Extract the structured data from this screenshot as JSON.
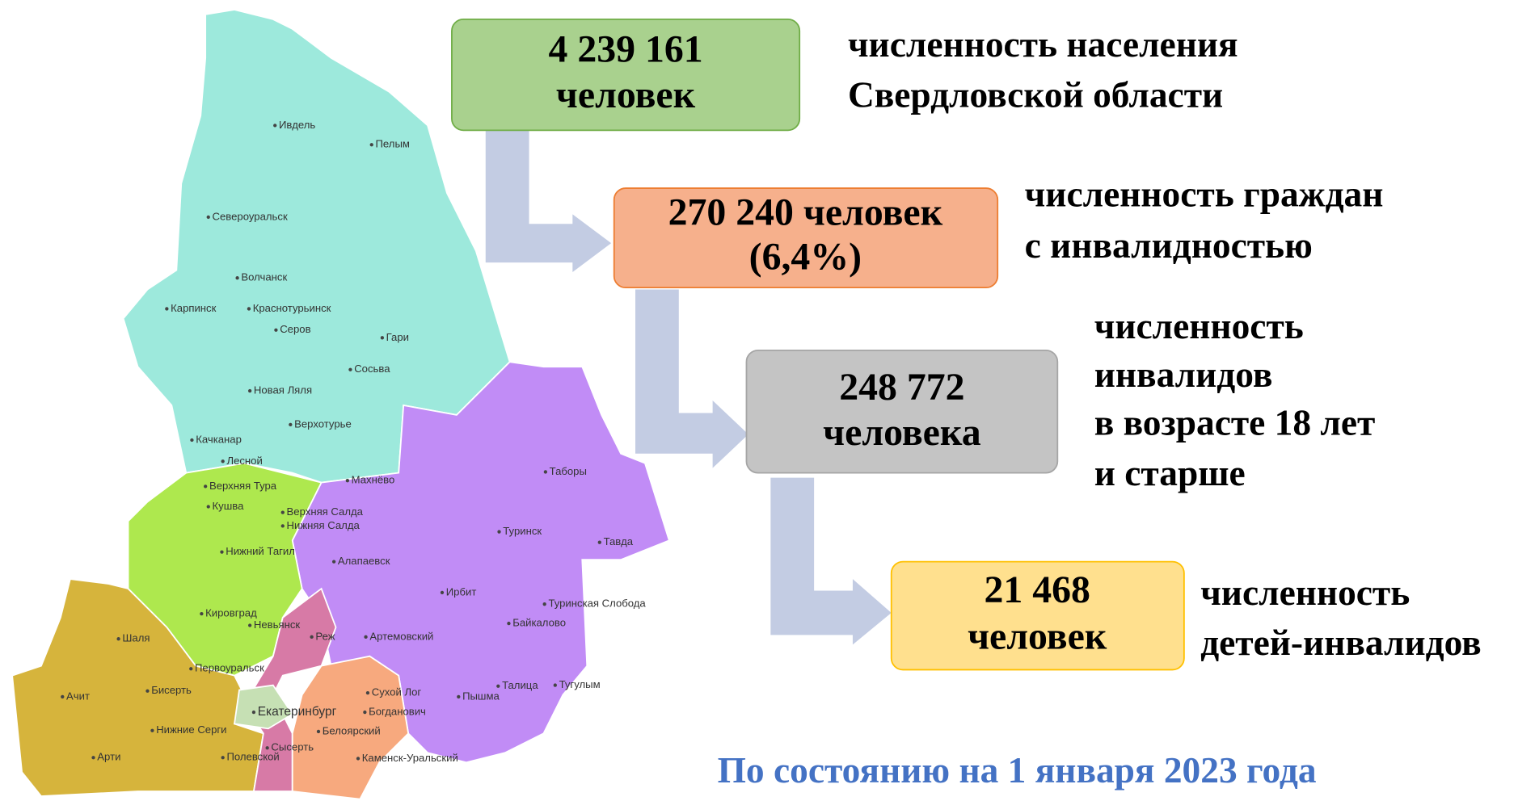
{
  "boxes": [
    {
      "lines": [
        "4 239 161",
        "человек"
      ],
      "caption": [
        "численность населения",
        "Свердловской области"
      ]
    },
    {
      "lines": [
        "270 240 человек",
        "(6,4%)"
      ],
      "caption": [
        "численность граждан",
        "с инвалидностью"
      ]
    },
    {
      "lines": [
        "248 772",
        "человека"
      ],
      "caption": [
        "численность",
        "инвалидов",
        "в возрасте 18 лет",
        "и старше"
      ]
    },
    {
      "lines": [
        "21 468",
        "человек"
      ],
      "caption": [
        "численность",
        "детей-инвалидов"
      ]
    }
  ],
  "footer": "По состоянию на 1 января 2023 года",
  "map": {
    "cities": [
      "Ивдель",
      "Пелым",
      "Североуральск",
      "Волчанск",
      "Карпинск",
      "Краснотурьинск",
      "Серов",
      "Гари",
      "Сосьва",
      "Новая Ляля",
      "Верхотурье",
      "Качканар",
      "Лесной",
      "Верхняя Тура",
      "Кушва",
      "Верхняя Салда",
      "Нижняя Салда",
      "Нижний Тагил",
      "Махнёво",
      "Таборы",
      "Туринск",
      "Тавда",
      "Алапаевск",
      "Ирбит",
      "Туринская Слобода",
      "Кировград",
      "Невьянск",
      "Байкалово",
      "Шаля",
      "Реж",
      "Артемовский",
      "Первоуральск",
      "Ачит",
      "Бисерть",
      "Сухой Лог",
      "Пышма",
      "Талица",
      "Тугулым",
      "Екатеринбург",
      "Богданович",
      "Нижние Серги",
      "Белоярский",
      "Арти",
      "Сысерть",
      "Полевской",
      "Каменск-Уральский"
    ]
  }
}
